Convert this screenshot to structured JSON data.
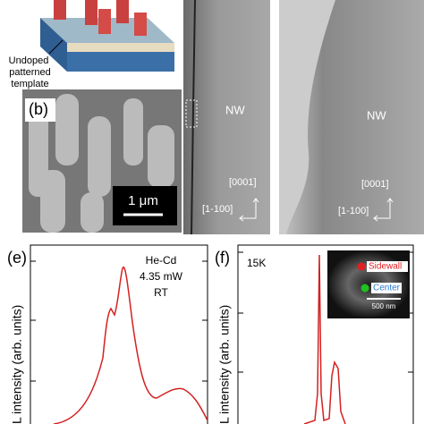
{
  "panels": {
    "a": {
      "callout": "Undoped patterned template"
    },
    "b": {
      "label": "(b)",
      "scale_bar": "1 μm"
    },
    "c": {
      "nw": "NW",
      "dir1": "[0001]",
      "dir2": "[1-100]"
    },
    "d": {
      "nw": "NW",
      "dir1": "[0001]",
      "dir2": "[1-100]"
    },
    "e": {
      "label": "(e)",
      "source": "He-Cd",
      "power": "4.35 mW",
      "temp": "RT",
      "ylabel": "L intensity (arb. units)"
    },
    "f": {
      "label": "(f)",
      "temp": "15K",
      "sidewall": "Sidewall",
      "center": "Center",
      "scale_bar": "500 nm",
      "ylabel": "L intensity (arb. units)"
    }
  }
}
